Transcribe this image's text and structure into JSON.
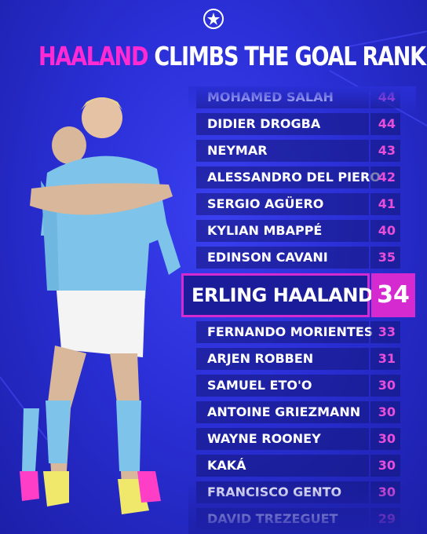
{
  "title": {
    "highlight": "HAALAND",
    "rest": "CLIMBS THE GOAL RANKINGS"
  },
  "rankings_above": [
    {
      "name": "MOHAMED SALAH",
      "goals": 44
    },
    {
      "name": "DIDIER DROGBA",
      "goals": 44
    },
    {
      "name": "NEYMAR",
      "goals": 43
    },
    {
      "name": "ALESSANDRO DEL PIERO",
      "goals": 42
    },
    {
      "name": "SERGIO AGÜERO",
      "goals": 41
    },
    {
      "name": "KYLIAN MBAPPÉ",
      "goals": 40
    },
    {
      "name": "EDINSON CAVANI",
      "goals": 35
    }
  ],
  "featured": {
    "name": "ERLING HAALAND",
    "goals": 34
  },
  "rankings_below": [
    {
      "name": "FERNANDO MORIENTES",
      "goals": 33
    },
    {
      "name": "ARJEN ROBBEN",
      "goals": 31
    },
    {
      "name": "SAMUEL ETO'O",
      "goals": 30
    },
    {
      "name": "ANTOINE GRIEZMANN",
      "goals": 30
    },
    {
      "name": "WAYNE ROONEY",
      "goals": 30
    },
    {
      "name": "KAKÁ",
      "goals": 30
    },
    {
      "name": "FRANCISCO GENTO",
      "goals": 30
    },
    {
      "name": "DAVID TREZEGUET",
      "goals": 29
    }
  ]
}
